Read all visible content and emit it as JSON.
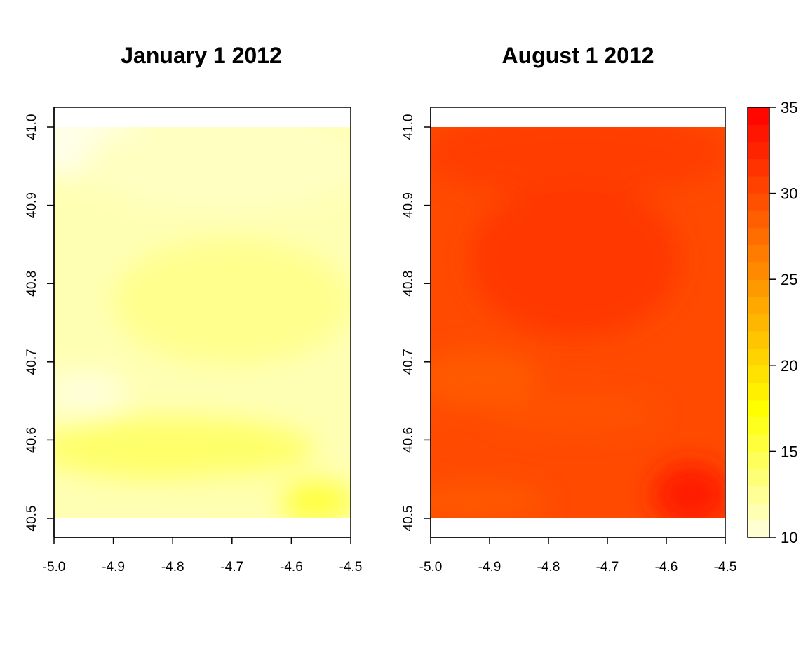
{
  "chart_data": [
    {
      "type": "heatmap",
      "title": "January 1 2012",
      "xlabel": "",
      "ylabel": "",
      "x_ticks": [
        "-5.0",
        "-4.9",
        "-4.8",
        "-4.7",
        "-4.6",
        "-4.5"
      ],
      "y_ticks": [
        "40.5",
        "40.6",
        "40.7",
        "40.8",
        "40.9",
        "41.0"
      ],
      "xlim": [
        -5.0,
        -4.5
      ],
      "ylim": [
        40.5,
        41.0
      ],
      "approx_value_range": [
        10,
        17
      ],
      "regions": [
        {
          "area": "north-west corner",
          "approx_value": 10.5
        },
        {
          "area": "north",
          "approx_value": 11.5
        },
        {
          "area": "centre",
          "approx_value": 13
        },
        {
          "area": "south band",
          "approx_value": 14.5
        },
        {
          "area": "south-east corner",
          "approx_value": 16
        }
      ]
    },
    {
      "type": "heatmap",
      "title": "August 1 2012",
      "xlabel": "",
      "ylabel": "",
      "x_ticks": [
        "-5.0",
        "-4.9",
        "-4.8",
        "-4.7",
        "-4.6",
        "-4.5"
      ],
      "y_ticks": [
        "40.5",
        "40.6",
        "40.7",
        "40.8",
        "40.9",
        "41.0"
      ],
      "xlim": [
        -5.0,
        -4.5
      ],
      "ylim": [
        40.5,
        41.0
      ],
      "approx_value_range": [
        26,
        34
      ],
      "regions": [
        {
          "area": "north and centre plateau",
          "approx_value": 31
        },
        {
          "area": "west and middle bands",
          "approx_value": 29
        },
        {
          "area": "south",
          "approx_value": 29.5
        },
        {
          "area": "south-east corner",
          "approx_value": 33.5
        }
      ]
    }
  ],
  "colorbar": {
    "min": 10,
    "max": 35,
    "tick_labels": [
      "10",
      "15",
      "20",
      "25",
      "30",
      "35"
    ],
    "low_color": "#FFFFE0",
    "mid_color": "#FFFF00",
    "high_color": "#FF0000"
  }
}
